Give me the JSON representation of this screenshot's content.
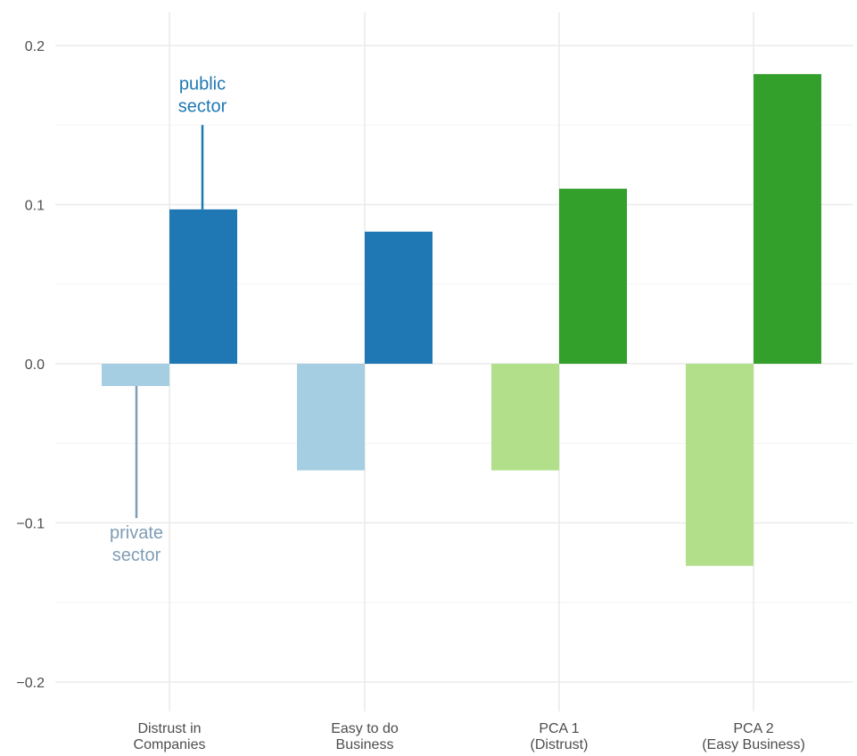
{
  "chart_data": {
    "type": "bar",
    "categories": [
      [
        "Distrust in",
        "Companies"
      ],
      [
        "Easy to do",
        "Business"
      ],
      [
        "PCA 1",
        "(Distrust)"
      ],
      [
        "PCA 2",
        "(Easy Business)"
      ]
    ],
    "series": [
      {
        "values": [
          -0.014,
          -0.067,
          -0.067,
          -0.127
        ],
        "colors": [
          "#a6cee3",
          "#a6cee3",
          "#b2df8a",
          "#b2df8a"
        ]
      },
      {
        "values": [
          0.097,
          0.083,
          0.11,
          0.182
        ],
        "colors": [
          "#1f78b4",
          "#1f78b4",
          "#33a02c",
          "#33a02c"
        ]
      }
    ],
    "ylim": [
      -0.22,
      0.22
    ],
    "yticks": [
      -0.2,
      -0.1,
      0.0,
      0.1,
      0.2
    ],
    "ytick_labels": [
      "−0.2",
      "−0.1",
      "0.0",
      "0.1",
      "0.2"
    ],
    "grid": true,
    "annotations": [
      {
        "lines": [
          "public",
          "sector"
        ],
        "color": "#1f78b4",
        "category": 0,
        "series": 1,
        "anchor_value": 0.15
      },
      {
        "lines": [
          "private",
          "sector"
        ],
        "color": "#7f9db4",
        "category": 0,
        "series": 0,
        "anchor_value": -0.097
      }
    ]
  }
}
